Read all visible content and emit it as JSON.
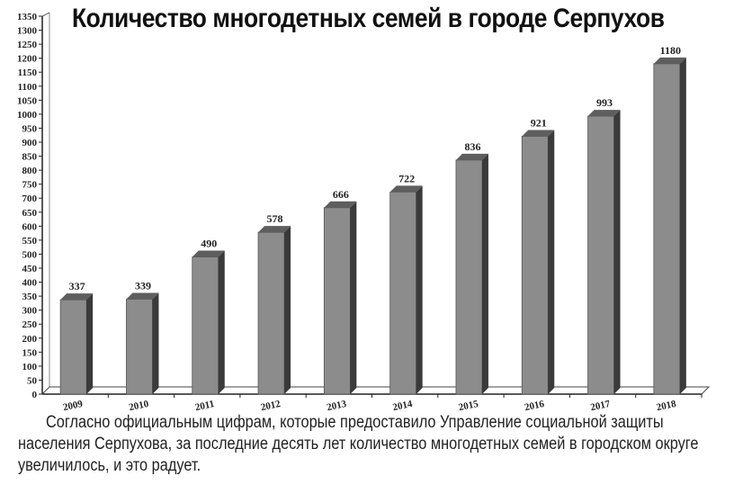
{
  "chart_data": {
    "type": "bar",
    "title": "Количество многодетных семей в городе Серпухов",
    "xlabel": "",
    "ylabel": "",
    "categories": [
      "2009",
      "2010",
      "2011",
      "2012",
      "2013",
      "2014",
      "2015",
      "2016",
      "2017",
      "2018"
    ],
    "values": [
      337,
      339,
      490,
      578,
      666,
      722,
      836,
      921,
      993,
      1180
    ],
    "ylim": [
      0,
      1350
    ],
    "yticks": [
      0,
      50,
      100,
      150,
      200,
      250,
      300,
      350,
      400,
      450,
      500,
      550,
      600,
      650,
      700,
      750,
      800,
      850,
      900,
      950,
      1000,
      1050,
      1100,
      1150,
      1200,
      1250,
      1300,
      1350
    ],
    "grid": false,
    "legend": "none",
    "style": "3d-column",
    "bar_color": "#8c8c8c",
    "bar_side_color": "#3a3a3a",
    "bar_top_color": "#5e5e5e"
  },
  "caption": {
    "text": "Согласно официальным цифрам, которые предоставило Управление социальной защиты населения Серпухова, за последние десять лет количество многодетных семей в городском округе увеличилось, и это радует."
  }
}
